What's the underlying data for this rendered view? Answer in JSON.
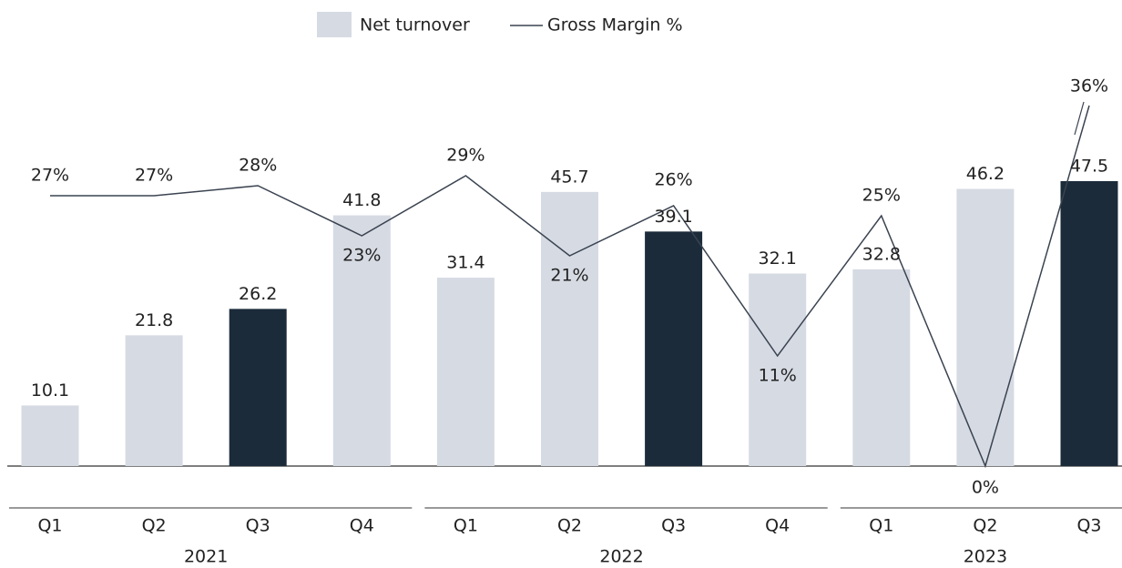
{
  "chart_data": {
    "type": "bar",
    "groups": [
      {
        "name": "2021",
        "categories": [
          "Q1",
          "Q2",
          "Q3",
          "Q4"
        ]
      },
      {
        "name": "2022",
        "categories": [
          "Q1",
          "Q2",
          "Q3",
          "Q4"
        ]
      },
      {
        "name": "2023",
        "categories": [
          "Q1",
          "Q2",
          "Q3"
        ]
      }
    ],
    "series": [
      {
        "name": "Net turnover",
        "type": "bar",
        "color": "#d6dae3",
        "colors": [
          "#d6dae3",
          "#d6dae3",
          "#1c2b3a",
          "#d6dae3",
          "#d6dae3",
          "#d6dae3",
          "#1c2b3a",
          "#d6dae3",
          "#d6dae3",
          "#d6dae3",
          "#1c2b3a"
        ],
        "values": [
          10.1,
          21.8,
          26.2,
          41.8,
          31.4,
          45.7,
          39.1,
          32.1,
          32.8,
          46.2,
          47.5
        ]
      },
      {
        "name": "Gross Margin %",
        "type": "line",
        "color": "#3a4350",
        "values": [
          27,
          27,
          28,
          23,
          29,
          21,
          26,
          11,
          25,
          0,
          36
        ],
        "value_labels": [
          "27%",
          "27%",
          "28%",
          "23%",
          "29%",
          "21%",
          "26%",
          "11%",
          "25%",
          "0%",
          "36%"
        ]
      }
    ],
    "legend": "top"
  }
}
